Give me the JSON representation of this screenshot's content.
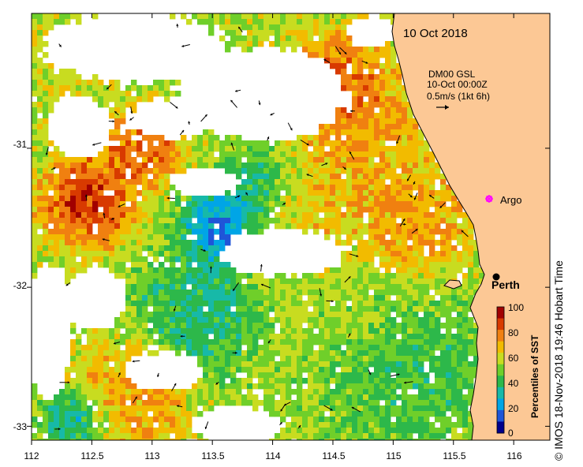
{
  "date_label": "10 Oct 2018",
  "analysis": {
    "product": "DM00 GSL",
    "time": "10-Oct 00:00Z",
    "vector_scale": "0.5m/s (1kt 6h)"
  },
  "axes": {
    "x_ticks": [
      "112",
      "112.5",
      "113",
      "113.5",
      "114",
      "114.5",
      "115",
      "115.5",
      "116"
    ],
    "x_values": [
      112,
      112.5,
      113,
      113.5,
      114,
      114.5,
      115,
      115.5,
      116
    ],
    "y_ticks": [
      "-31",
      "-32",
      "-33"
    ],
    "y_values": [
      -31,
      -32,
      -33
    ],
    "lon_range": [
      112,
      116.3
    ],
    "lat_range": [
      -30.03,
      -33.1
    ]
  },
  "locations": [
    {
      "name": "Argo",
      "lon": 115.78,
      "lat": -31.41,
      "marker": "magenta-star"
    },
    {
      "name": "Perth",
      "lon": 115.86,
      "lat": -31.95,
      "marker": "black-dot"
    }
  ],
  "colorbar": {
    "title": "Percentiles of SST",
    "tick_labels": [
      "100",
      "80",
      "60",
      "40",
      "20",
      "0"
    ],
    "colors": [
      "#a10000",
      "#d83a00",
      "#f08010",
      "#f2bb00",
      "#c8dc20",
      "#6fcf2a",
      "#2db84a",
      "#17b9a8",
      "#00a5e6",
      "#1f55d8",
      "#00008c"
    ]
  },
  "colors": {
    "land": "#fcc895",
    "no_data": "#ffffff",
    "coast": "#000000"
  },
  "credit": "© IMOS 18-Nov-2018 19:46 Hobart Time"
}
